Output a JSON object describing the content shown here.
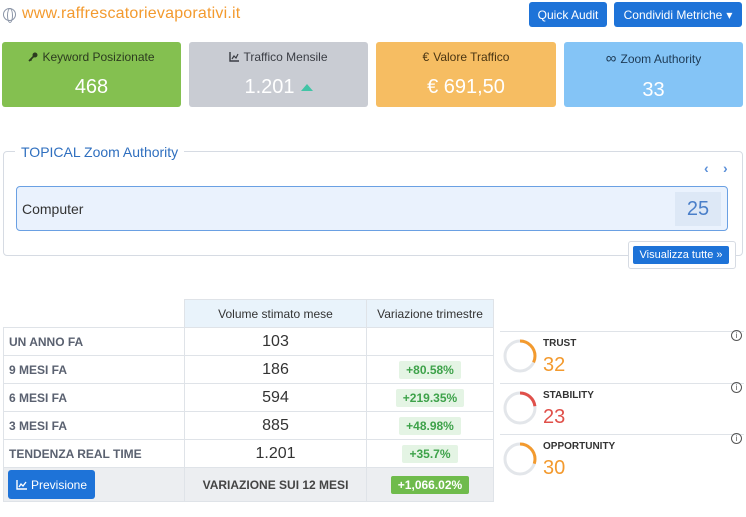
{
  "header": {
    "site_url": "www.raffrescatorievaporativi.it",
    "quick_audit": "Quick Audit",
    "share_metrics": "Condividi Metriche",
    "share_caret": "▾"
  },
  "metrics": [
    {
      "icon": "key-icon",
      "label": "Keyword Posizionate",
      "value": "468"
    },
    {
      "icon": "chart-icon",
      "label": "Traffico Mensile",
      "value": "1.201"
    },
    {
      "icon": "euro-icon",
      "label": "Valore Traffico",
      "value": "€ 691,50"
    },
    {
      "icon": "infinity-icon",
      "label": "Zoom Authority",
      "value": "33"
    }
  ],
  "topical": {
    "title": "TOPICAL Zoom Authority",
    "category": "Computer",
    "score": "25",
    "view_all": "Visualizza tutte"
  },
  "table": {
    "headers": [
      "",
      "Volume stimato mese",
      "Variazione trimestre"
    ],
    "rows": [
      {
        "label": "UN ANNO FA",
        "volume": "103",
        "variation": ""
      },
      {
        "label": "9 MESI FA",
        "volume": "186",
        "variation": "+80.58%"
      },
      {
        "label": "6 MESI FA",
        "volume": "594",
        "variation": "+219.35%"
      },
      {
        "label": "3 MESI FA",
        "volume": "885",
        "variation": "+48.98%"
      },
      {
        "label": "TENDENZA REAL TIME",
        "volume": "1.201",
        "variation": "+35.7%"
      }
    ],
    "footer": {
      "button": "Previsione",
      "label": "VARIAZIONE SUI 12 MESI",
      "value": "+1,066.02%"
    }
  },
  "gauges": [
    {
      "label": "TRUST",
      "value": "32",
      "color": "#f39a2e",
      "fraction": 0.32
    },
    {
      "label": "STABILITY",
      "value": "23",
      "color": "#e0504a",
      "fraction": 0.23
    },
    {
      "label": "OPPORTUNITY",
      "value": "30",
      "color": "#f39a2e",
      "fraction": 0.3
    }
  ],
  "colors": {
    "accent": "#1e73d8",
    "orange": "#f39a2e"
  }
}
